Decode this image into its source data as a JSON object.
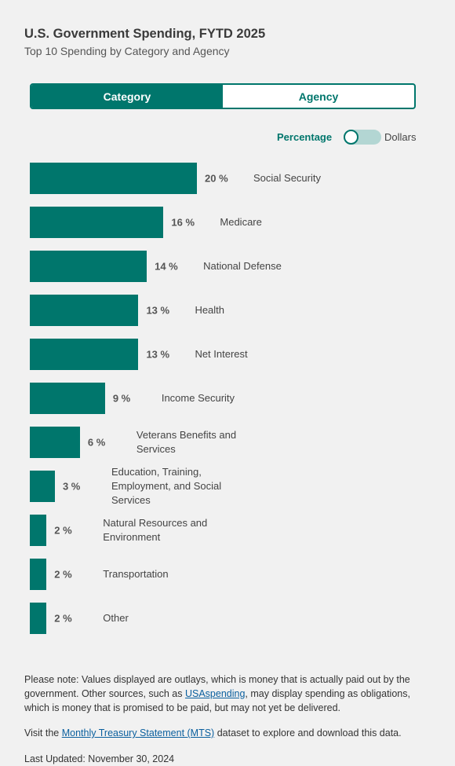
{
  "header": {
    "title": "U.S. Government Spending, FYTD 2025",
    "subtitle": "Top 10 Spending by Category and Agency"
  },
  "tabs": [
    "Category",
    "Agency"
  ],
  "toggle": {
    "left": "Percentage",
    "right": "Dollars"
  },
  "chart_data": {
    "type": "bar",
    "orientation": "horizontal",
    "color": "#00766c",
    "categories": [
      "Social Security",
      "Medicare",
      "National Defense",
      "Health",
      "Net Interest",
      "Income Security",
      "Veterans Benefits and Services",
      "Education, Training, Employment, and Social Services",
      "Natural Resources and Environment",
      "Transportation",
      "Other"
    ],
    "values": [
      20,
      16,
      14,
      13,
      13,
      9,
      6,
      3,
      2,
      2,
      2
    ],
    "value_labels": [
      "20 %",
      "16 %",
      "14 %",
      "13 %",
      "13 %",
      "9 %",
      "6 %",
      "3 %",
      "2 %",
      "2 %",
      "2 %"
    ]
  },
  "footer": {
    "note": {
      "before": "Please note: Values displayed are outlays, which is money that is actually paid out by the government. Other sources, such as ",
      "link": "USAspending",
      "after": ", may display spending as obligations, which is money that is promised to be paid, but may not yet be delivered."
    },
    "visit": {
      "before": "Visit the ",
      "link": "Monthly Treasury Statement (MTS)",
      "after": " dataset to explore and download this data."
    },
    "updated": "Last Updated: November 30, 2024"
  }
}
